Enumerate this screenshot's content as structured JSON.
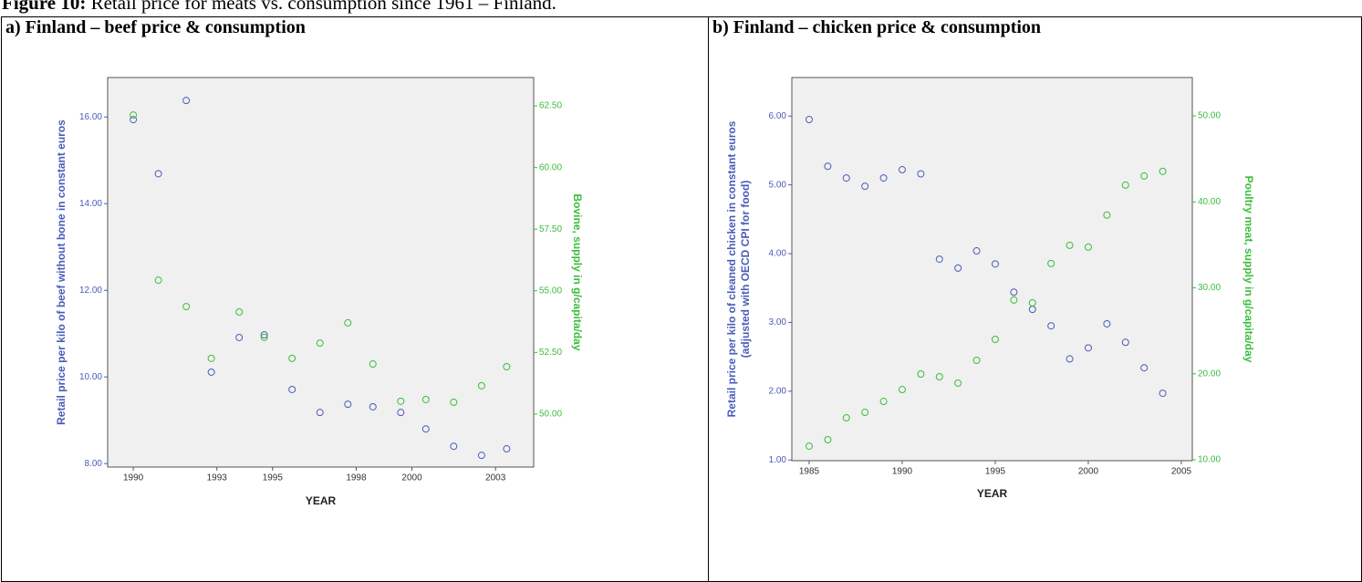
{
  "figure_label": "Figure 10:",
  "figure_caption": "Retail price for meats vs. consumption since 1961 – Finland.",
  "chart_data": [
    {
      "type": "scatter",
      "title": "a) Finland – beef price & consumption",
      "x_label": "YEAR",
      "y_label": "Retail price per kilo of beef without bone in constant euros",
      "y2_label": "Bovine, supply in g/capita/day",
      "x": [
        1990,
        1990.9,
        1991.9,
        1992.8,
        1993.8,
        1994.7,
        1995.7,
        1996.7,
        1997.7,
        1998.6,
        1999.6,
        2000.5,
        2001.5,
        2002.5,
        2003.4
      ],
      "series": [
        {
          "color": "#4a5cb8",
          "axis": "y",
          "values": [
            15.94,
            14.69,
            16.38,
            10.11,
            10.91,
            10.97,
            9.71,
            9.18,
            9.37,
            9.31,
            9.18,
            8.8,
            8.4,
            8.19,
            8.34
          ]
        },
        {
          "color": "#3cbd3c",
          "axis": "y2",
          "values": [
            62.13,
            55.43,
            54.36,
            52.26,
            54.14,
            53.11,
            52.26,
            52.88,
            53.7,
            52.03,
            50.52,
            50.59,
            50.48,
            51.15,
            51.92
          ]
        }
      ],
      "xlim": [
        1989.08,
        2004.37
      ],
      "xticks": [
        1990,
        1993,
        1995,
        1998,
        2000,
        2003
      ],
      "ylim": [
        7.92,
        16.91
      ],
      "yticks": [
        {
          "value": 8,
          "label": "8.00"
        },
        {
          "value": 10,
          "label": "10.00"
        },
        {
          "value": 12,
          "label": "12.00"
        },
        {
          "value": 14,
          "label": "14.00"
        },
        {
          "value": 16,
          "label": "16.00"
        }
      ],
      "y2lim": [
        47.85,
        63.65
      ],
      "y2ticks": [
        {
          "value": 50,
          "label": "50.00"
        },
        {
          "value": 52.5,
          "label": "52.50"
        },
        {
          "value": 55,
          "label": "55.00"
        },
        {
          "value": 57.5,
          "label": "57.50"
        },
        {
          "value": 60,
          "label": "60.00"
        },
        {
          "value": 62.5,
          "label": "62.50"
        }
      ]
    },
    {
      "type": "scatter",
      "title": "b) Finland – chicken price & consumption",
      "x_label": "YEAR",
      "y_label": [
        "Retail price per kilo of cleaned chicken in constant euros",
        "(adjusted with OECD CPI for food)"
      ],
      "y2_label": "Poultry meat, supply in g/capita/day",
      "x": [
        1985,
        1986,
        1987,
        1988,
        1989,
        1990,
        1991,
        1992,
        1993,
        1994,
        1995,
        1996,
        1997,
        1998,
        1999,
        2000,
        2001,
        2002,
        2003,
        2004
      ],
      "series": [
        {
          "color": "#4a5cb8",
          "axis": "y",
          "values": [
            5.95,
            5.27,
            5.1,
            4.98,
            5.1,
            5.22,
            5.16,
            3.92,
            3.79,
            4.04,
            3.85,
            3.44,
            3.19,
            2.95,
            2.47,
            2.63,
            2.98,
            2.71,
            2.34,
            1.97
          ]
        },
        {
          "color": "#3cbd3c",
          "axis": "y2",
          "values": [
            11.59,
            12.34,
            14.88,
            15.52,
            16.79,
            18.17,
            19.98,
            19.66,
            18.92,
            21.57,
            24.01,
            28.58,
            28.26,
            32.83,
            34.95,
            34.74,
            38.46,
            41.95,
            43.01,
            43.55
          ]
        }
      ],
      "xlim": [
        1984.07,
        2005.59
      ],
      "xticks": [
        1985,
        1990,
        1995,
        2000,
        2005
      ],
      "ylim": [
        0.99,
        6.56
      ],
      "yticks": [
        {
          "value": 1,
          "label": "1.00"
        },
        {
          "value": 2,
          "label": "2.00"
        },
        {
          "value": 3,
          "label": "3.00"
        },
        {
          "value": 4,
          "label": "4.00"
        },
        {
          "value": 5,
          "label": "5.00"
        },
        {
          "value": 6,
          "label": "6.00"
        }
      ],
      "y2lim": [
        9.9,
        54.46
      ],
      "y2ticks": [
        {
          "value": 10,
          "label": "10.00"
        },
        {
          "value": 20,
          "label": "20.00"
        },
        {
          "value": 30,
          "label": "30.00"
        },
        {
          "value": 40,
          "label": "40.00"
        },
        {
          "value": 50,
          "label": "50.00"
        }
      ]
    }
  ]
}
